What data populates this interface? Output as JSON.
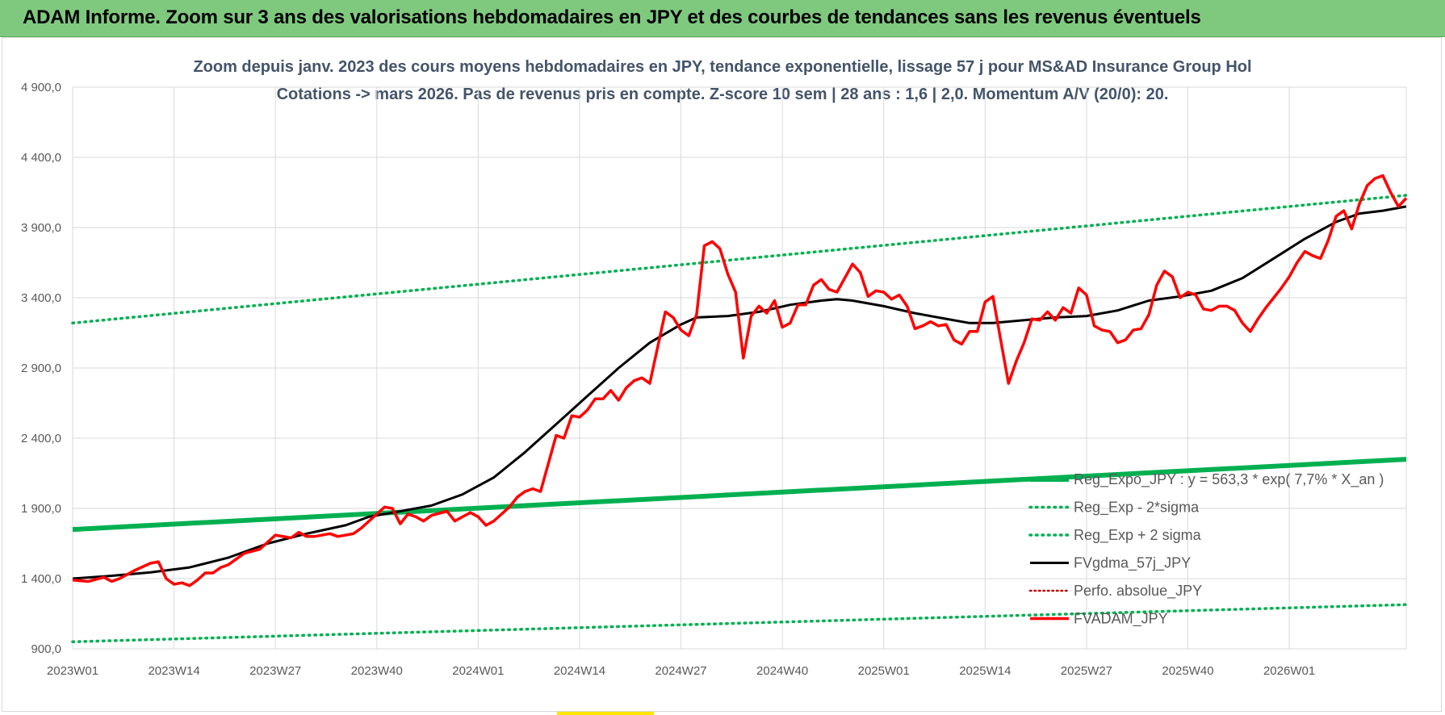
{
  "header": {
    "title": "ADAM Informe. Zoom sur 3 ans des valorisations hebdomadaires en JPY et des courbes de tendances sans les revenus éventuels"
  },
  "chart_data": {
    "type": "line",
    "title_line1": "Zoom depuis janv. 2023 des cours moyens hebdomadaires en JPY, tendance exponentielle, lissage 57 j pour MS&AD Insurance Group Hol",
    "title_line2": "Cotations -> mars 2026. Pas de revenus pris en compte. Z-score 10 sem | 28 ans : 1,6 | 2,0. Momentum A/V (20/0): 20.",
    "ylim": [
      900,
      4900
    ],
    "y_ticks": [
      900,
      1400,
      1900,
      2400,
      2900,
      3400,
      3900,
      4400,
      4900
    ],
    "y_tick_labels": [
      "900,0",
      "1 400,0",
      "1 900,0",
      "2 400,0",
      "2 900,0",
      "3 400,0",
      "3 900,0",
      "4 400,0",
      "4 900,0"
    ],
    "x_tick_labels": [
      "2023W01",
      "2023W14",
      "2023W27",
      "2023W40",
      "2024W01",
      "2024W14",
      "2024W27",
      "2024W40",
      "2025W01",
      "2025W14",
      "2025W27",
      "2025W40",
      "2026W01"
    ],
    "x_tick_weeks": [
      0,
      13,
      26,
      39,
      52,
      65,
      78,
      91,
      104,
      117,
      130,
      143,
      156
    ],
    "n_weeks": 171,
    "grid": true,
    "legend_position": "bottom-right",
    "colors": {
      "reg_expo": "#00b050",
      "sigma_bands": "#00b050",
      "fvgdma": "#000000",
      "perfo": "#c00000",
      "fvadam": "#ff0000"
    },
    "series": [
      {
        "key": "reg_expo",
        "name": "Reg_Expo_JPY : y = 563,3 * exp( 7,7% *  X_an )",
        "style": "thick",
        "points": [
          [
            0,
            1750
          ],
          [
            171,
            2250
          ]
        ]
      },
      {
        "key": "minus2",
        "name": "Reg_Exp - 2*sigma",
        "style": "dotted",
        "points": [
          [
            0,
            950
          ],
          [
            171,
            1215
          ]
        ]
      },
      {
        "key": "plus2",
        "name": "Reg_Exp + 2 sigma",
        "style": "dotted",
        "points": [
          [
            0,
            3220
          ],
          [
            171,
            4130
          ]
        ]
      },
      {
        "key": "fvgdma",
        "name": "FVgdma_57j_JPY",
        "style": "solid",
        "points": [
          [
            0,
            1400
          ],
          [
            5,
            1420
          ],
          [
            10,
            1445
          ],
          [
            15,
            1480
          ],
          [
            20,
            1550
          ],
          [
            25,
            1650
          ],
          [
            30,
            1720
          ],
          [
            35,
            1780
          ],
          [
            38,
            1840
          ],
          [
            42,
            1880
          ],
          [
            46,
            1920
          ],
          [
            50,
            2000
          ],
          [
            54,
            2120
          ],
          [
            58,
            2300
          ],
          [
            62,
            2500
          ],
          [
            66,
            2700
          ],
          [
            70,
            2900
          ],
          [
            74,
            3080
          ],
          [
            78,
            3210
          ],
          [
            80,
            3260
          ],
          [
            84,
            3270
          ],
          [
            88,
            3300
          ],
          [
            92,
            3350
          ],
          [
            96,
            3380
          ],
          [
            98,
            3390
          ],
          [
            100,
            3380
          ],
          [
            104,
            3340
          ],
          [
            108,
            3290
          ],
          [
            112,
            3250
          ],
          [
            115,
            3220
          ],
          [
            118,
            3220
          ],
          [
            122,
            3240
          ],
          [
            126,
            3260
          ],
          [
            130,
            3270
          ],
          [
            134,
            3310
          ],
          [
            138,
            3380
          ],
          [
            142,
            3410
          ],
          [
            146,
            3450
          ],
          [
            150,
            3540
          ],
          [
            154,
            3680
          ],
          [
            158,
            3820
          ],
          [
            162,
            3940
          ],
          [
            165,
            4000
          ],
          [
            168,
            4020
          ],
          [
            171,
            4050
          ]
        ]
      },
      {
        "key": "perfo",
        "name": "Perfo. absolue_JPY",
        "style": "dotted-red",
        "points": []
      },
      {
        "key": "fvadam",
        "name": "FVADAM_JPY",
        "style": "thick-red",
        "points": [
          [
            0,
            1390
          ],
          [
            2,
            1380
          ],
          [
            4,
            1410
          ],
          [
            5,
            1380
          ],
          [
            6,
            1400
          ],
          [
            8,
            1460
          ],
          [
            10,
            1510
          ],
          [
            11,
            1520
          ],
          [
            12,
            1400
          ],
          [
            13,
            1360
          ],
          [
            14,
            1370
          ],
          [
            15,
            1350
          ],
          [
            16,
            1390
          ],
          [
            17,
            1440
          ],
          [
            18,
            1440
          ],
          [
            19,
            1480
          ],
          [
            20,
            1500
          ],
          [
            22,
            1580
          ],
          [
            24,
            1610
          ],
          [
            26,
            1710
          ],
          [
            28,
            1690
          ],
          [
            29,
            1730
          ],
          [
            30,
            1700
          ],
          [
            31,
            1700
          ],
          [
            33,
            1720
          ],
          [
            34,
            1700
          ],
          [
            36,
            1720
          ],
          [
            37,
            1760
          ],
          [
            39,
            1860
          ],
          [
            40,
            1910
          ],
          [
            41,
            1900
          ],
          [
            42,
            1790
          ],
          [
            43,
            1860
          ],
          [
            44,
            1840
          ],
          [
            45,
            1810
          ],
          [
            46,
            1850
          ],
          [
            48,
            1880
          ],
          [
            49,
            1810
          ],
          [
            50,
            1840
          ],
          [
            51,
            1870
          ],
          [
            52,
            1840
          ],
          [
            53,
            1780
          ],
          [
            54,
            1810
          ],
          [
            55,
            1860
          ],
          [
            56,
            1910
          ],
          [
            57,
            1980
          ],
          [
            58,
            2020
          ],
          [
            59,
            2040
          ],
          [
            60,
            2020
          ],
          [
            62,
            2420
          ],
          [
            63,
            2400
          ],
          [
            64,
            2560
          ],
          [
            65,
            2550
          ],
          [
            66,
            2600
          ],
          [
            67,
            2680
          ],
          [
            68,
            2680
          ],
          [
            69,
            2740
          ],
          [
            70,
            2670
          ],
          [
            71,
            2760
          ],
          [
            72,
            2810
          ],
          [
            73,
            2830
          ],
          [
            74,
            2790
          ],
          [
            76,
            3300
          ],
          [
            77,
            3260
          ],
          [
            78,
            3170
          ],
          [
            79,
            3130
          ],
          [
            80,
            3280
          ],
          [
            81,
            3770
          ],
          [
            82,
            3800
          ],
          [
            83,
            3750
          ],
          [
            84,
            3570
          ],
          [
            85,
            3440
          ],
          [
            86,
            2970
          ],
          [
            87,
            3270
          ],
          [
            88,
            3340
          ],
          [
            89,
            3290
          ],
          [
            90,
            3380
          ],
          [
            91,
            3190
          ],
          [
            92,
            3220
          ],
          [
            93,
            3350
          ],
          [
            94,
            3350
          ],
          [
            95,
            3490
          ],
          [
            96,
            3530
          ],
          [
            97,
            3460
          ],
          [
            98,
            3440
          ],
          [
            100,
            3640
          ],
          [
            101,
            3580
          ],
          [
            102,
            3410
          ],
          [
            103,
            3450
          ],
          [
            104,
            3440
          ],
          [
            105,
            3390
          ],
          [
            106,
            3420
          ],
          [
            107,
            3340
          ],
          [
            108,
            3180
          ],
          [
            109,
            3200
          ],
          [
            110,
            3230
          ],
          [
            111,
            3200
          ],
          [
            112,
            3210
          ],
          [
            113,
            3100
          ],
          [
            114,
            3070
          ],
          [
            115,
            3160
          ],
          [
            116,
            3160
          ],
          [
            117,
            3370
          ],
          [
            118,
            3410
          ],
          [
            119,
            3100
          ],
          [
            120,
            2790
          ],
          [
            121,
            2950
          ],
          [
            122,
            3080
          ],
          [
            123,
            3250
          ],
          [
            124,
            3240
          ],
          [
            125,
            3300
          ],
          [
            126,
            3240
          ],
          [
            127,
            3330
          ],
          [
            128,
            3290
          ],
          [
            129,
            3470
          ],
          [
            130,
            3420
          ],
          [
            131,
            3200
          ],
          [
            132,
            3170
          ],
          [
            133,
            3160
          ],
          [
            134,
            3080
          ],
          [
            135,
            3100
          ],
          [
            136,
            3170
          ],
          [
            137,
            3180
          ],
          [
            138,
            3280
          ],
          [
            139,
            3490
          ],
          [
            140,
            3590
          ],
          [
            141,
            3550
          ],
          [
            142,
            3400
          ],
          [
            143,
            3440
          ],
          [
            144,
            3420
          ],
          [
            145,
            3320
          ],
          [
            146,
            3310
          ],
          [
            147,
            3340
          ],
          [
            148,
            3340
          ],
          [
            149,
            3310
          ],
          [
            150,
            3220
          ],
          [
            151,
            3160
          ],
          [
            152,
            3250
          ],
          [
            153,
            3330
          ],
          [
            154,
            3400
          ],
          [
            155,
            3470
          ],
          [
            156,
            3550
          ],
          [
            157,
            3650
          ],
          [
            158,
            3730
          ],
          [
            159,
            3700
          ],
          [
            160,
            3680
          ],
          [
            161,
            3810
          ],
          [
            162,
            3980
          ],
          [
            163,
            4020
          ],
          [
            164,
            3890
          ],
          [
            165,
            4070
          ],
          [
            166,
            4200
          ],
          [
            167,
            4250
          ],
          [
            168,
            4270
          ],
          [
            169,
            4150
          ],
          [
            170,
            4050
          ],
          [
            171,
            4110
          ]
        ]
      }
    ]
  }
}
